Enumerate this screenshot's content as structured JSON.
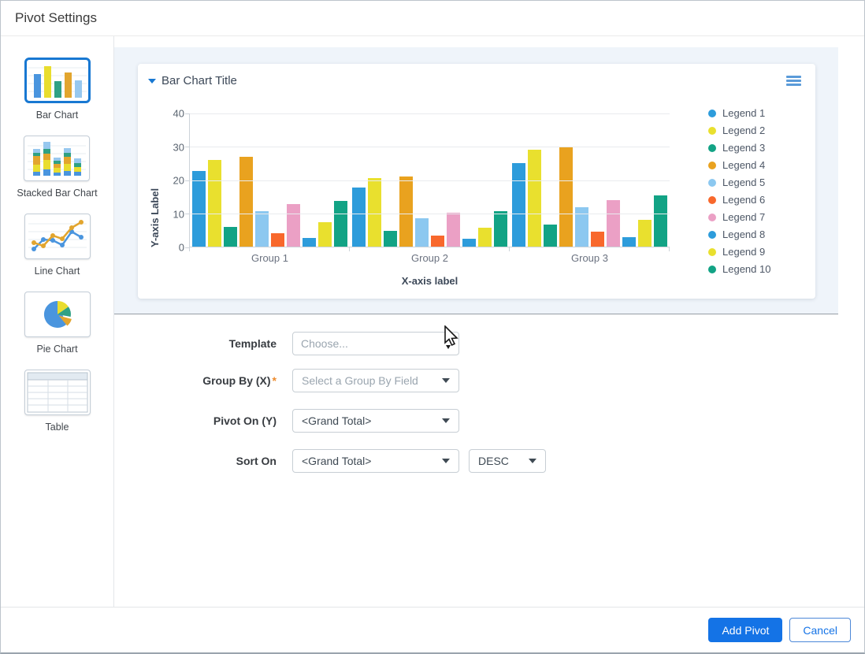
{
  "window": {
    "title": "Pivot Settings"
  },
  "sidebar": {
    "items": [
      {
        "label": "Bar Chart",
        "selected": true
      },
      {
        "label": "Stacked Bar Chart",
        "selected": false
      },
      {
        "label": "Line Chart",
        "selected": false
      },
      {
        "label": "Pie Chart",
        "selected": false
      },
      {
        "label": "Table",
        "selected": false
      }
    ]
  },
  "chart_data": {
    "type": "bar",
    "title": "Bar Chart Title",
    "xlabel": "X-axis label",
    "ylabel": "Y-axis Label",
    "ylim": [
      0,
      40
    ],
    "yticks": [
      0,
      10,
      20,
      30,
      40
    ],
    "grid": true,
    "legend_position": "right",
    "categories": [
      "Group 1",
      "Group 2",
      "Group 3"
    ],
    "series": [
      {
        "name": "Legend 1",
        "color": "#2D9CDB",
        "values": [
          22.5,
          17.7,
          25.0
        ]
      },
      {
        "name": "Legend 2",
        "color": "#E9E02E",
        "values": [
          26.0,
          20.5,
          29.0
        ]
      },
      {
        "name": "Legend 3",
        "color": "#12A385",
        "values": [
          5.8,
          4.6,
          6.5
        ]
      },
      {
        "name": "Legend 4",
        "color": "#E9A21F",
        "values": [
          26.8,
          21.0,
          30.0
        ]
      },
      {
        "name": "Legend 5",
        "color": "#8CC8F0",
        "values": [
          10.7,
          8.4,
          11.8
        ]
      },
      {
        "name": "Legend 6",
        "color": "#F8682C",
        "values": [
          3.9,
          3.2,
          4.4
        ]
      },
      {
        "name": "Legend 7",
        "color": "#EBA0C5",
        "values": [
          12.7,
          10.1,
          14.0
        ]
      },
      {
        "name": "Legend 8",
        "color": "#2D9CDB",
        "values": [
          2.7,
          2.3,
          2.8
        ]
      },
      {
        "name": "Legend 9",
        "color": "#E9E02E",
        "values": [
          7.3,
          5.6,
          7.9
        ]
      },
      {
        "name": "Legend 10",
        "color": "#12A385",
        "values": [
          13.6,
          10.7,
          15.3
        ]
      }
    ]
  },
  "form": {
    "template": {
      "label": "Template",
      "placeholder": "Choose..."
    },
    "group_by": {
      "label": "Group By (X)",
      "required_marker": "*",
      "placeholder": "Select a Group By Field"
    },
    "pivot_on": {
      "label": "Pivot On (Y)",
      "value": "<Grand Total>"
    },
    "sort_on": {
      "label": "Sort On",
      "value": "<Grand Total>",
      "direction": "DESC"
    }
  },
  "footer": {
    "add_label": "Add Pivot",
    "cancel_label": "Cancel"
  },
  "colors": {
    "accent": "#1473E6",
    "selected_border": "#1878D2",
    "panel_bg": "#EFF4FA",
    "required": "#ED8B2E"
  }
}
